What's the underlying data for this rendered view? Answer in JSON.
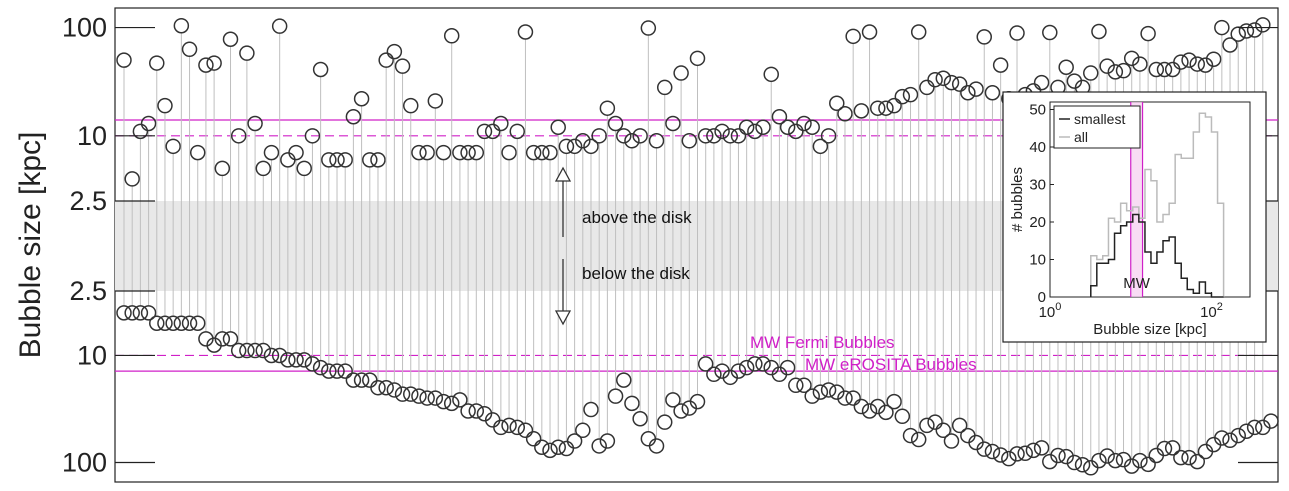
{
  "chart_data": {
    "type": "scatter",
    "ylabel": "Bubble size [kpc]",
    "y_scale": "log",
    "upper_panel": {
      "name": "above the disk",
      "ylim": [
        2.5,
        120
      ],
      "ticks": [
        100,
        10,
        2.5
      ],
      "tick_labels": [
        "100",
        "10",
        "2.5"
      ],
      "values": [
        50,
        4,
        11,
        13,
        47,
        19,
        8,
        104,
        63,
        7,
        45,
        47,
        5,
        78,
        10,
        58,
        13,
        5,
        7,
        103,
        6,
        7,
        5,
        10,
        41,
        6,
        6,
        6,
        15,
        22,
        6,
        6,
        50,
        60,
        44,
        19,
        7,
        7,
        21,
        7,
        84,
        7,
        7,
        7,
        11,
        11,
        13,
        7,
        11,
        91,
        7,
        7,
        7,
        12,
        8,
        8,
        9,
        8,
        10,
        18,
        13,
        10,
        9,
        10,
        99,
        9,
        28,
        13,
        38,
        9,
        52,
        10,
        10,
        11,
        10,
        10,
        12,
        11,
        12,
        37,
        15,
        12,
        11,
        13,
        12,
        8,
        10,
        20,
        16,
        83,
        17,
        91,
        18,
        18,
        19,
        23,
        24,
        91,
        28,
        33,
        34,
        31,
        30,
        25,
        27,
        82,
        25,
        45,
        22,
        89,
        24,
        26,
        31,
        90,
        28,
        43,
        32,
        28,
        38,
        92,
        44,
        39,
        40,
        52,
        46,
        88,
        41,
        41,
        41,
        48,
        50,
        46,
        45,
        51,
        100,
        69,
        87,
        93,
        95,
        106
      ]
    },
    "lower_panel": {
      "name": "below the disk",
      "ylim": [
        2.5,
        120
      ],
      "ticks": [
        2.5,
        10,
        100
      ],
      "tick_labels": [
        "2.5",
        "10",
        "100"
      ],
      "values": [
        4,
        4,
        4,
        4,
        5,
        5,
        5,
        5,
        5,
        5,
        7,
        8,
        7,
        7,
        9,
        9,
        9,
        9,
        10,
        10,
        11,
        11,
        11,
        12,
        13,
        14,
        14,
        14,
        17,
        17,
        17,
        20,
        20,
        21,
        23,
        23,
        24,
        25,
        25,
        27,
        28,
        26,
        33,
        33,
        35,
        40,
        47,
        45,
        47,
        50,
        60,
        72,
        77,
        72,
        74,
        63,
        50,
        32,
        70,
        63,
        24,
        17,
        28,
        39,
        60,
        70,
        42,
        26,
        33,
        31,
        27,
        12,
        15,
        14,
        16,
        14,
        13,
        12,
        12,
        13,
        15,
        13,
        19,
        19,
        24,
        22,
        21,
        22,
        25,
        25,
        30,
        33,
        30,
        34,
        27,
        37,
        56,
        61,
        45,
        42,
        50,
        63,
        45,
        56,
        65,
        75,
        79,
        85,
        92,
        83,
        82,
        77,
        73,
        98,
        86,
        88,
        100,
        105,
        112,
        96,
        87,
        96,
        94,
        108,
        96,
        104,
        86,
        74,
        73,
        90,
        90,
        98,
        79,
        68,
        59,
        62,
        56,
        51,
        47,
        47,
        41
      ]
    },
    "reference_lines": [
      {
        "name": "MW Fermi Bubbles",
        "value": 10,
        "style": "dashed",
        "color": "#d020c8"
      },
      {
        "name": "MW eROSITA Bubbles",
        "value": 14,
        "style": "solid",
        "color": "#d020c8"
      }
    ],
    "annotations": [
      "above the disk",
      "below the disk"
    ],
    "inset": {
      "type": "histogram",
      "xlabel": "Bubble size [kpc]",
      "ylabel": "# bubbles",
      "x_scale": "log",
      "xlim": [
        1,
        300
      ],
      "ylim": [
        0,
        52
      ],
      "xticks": [
        1,
        100
      ],
      "yticks": [
        0,
        10,
        20,
        30,
        40,
        50
      ],
      "yticklabels": [
        "0",
        "10",
        "20",
        "30",
        "40",
        "50"
      ],
      "bin_edges": [
        3.2,
        3.8,
        4.5,
        5.3,
        6.3,
        7.5,
        8.9,
        10.6,
        12.6,
        15,
        17.8,
        21.1,
        25.1,
        29.9,
        35.5,
        42.2,
        50.1,
        59.6,
        70.8,
        84.1,
        100,
        118.9,
        141.3
      ],
      "series": [
        {
          "name": "smallest",
          "color": "#222222",
          "values": [
            3,
            9,
            9,
            10,
            17,
            19,
            20,
            22,
            20,
            12,
            9,
            12,
            15,
            16,
            9,
            5,
            2,
            1,
            4,
            1,
            0,
            0
          ]
        },
        {
          "name": "all",
          "color": "#bbbbbb",
          "values": [
            11,
            10,
            11,
            21,
            20,
            25,
            23,
            24,
            21,
            34,
            31,
            20,
            22,
            25,
            38,
            37,
            37,
            44,
            49,
            48,
            44,
            25
          ]
        }
      ],
      "legend": [
        "smallest",
        "all"
      ],
      "legend_position": "top-left",
      "band_label": "MW",
      "band_color": "#d020c8",
      "band_range": [
        10,
        14
      ]
    }
  }
}
